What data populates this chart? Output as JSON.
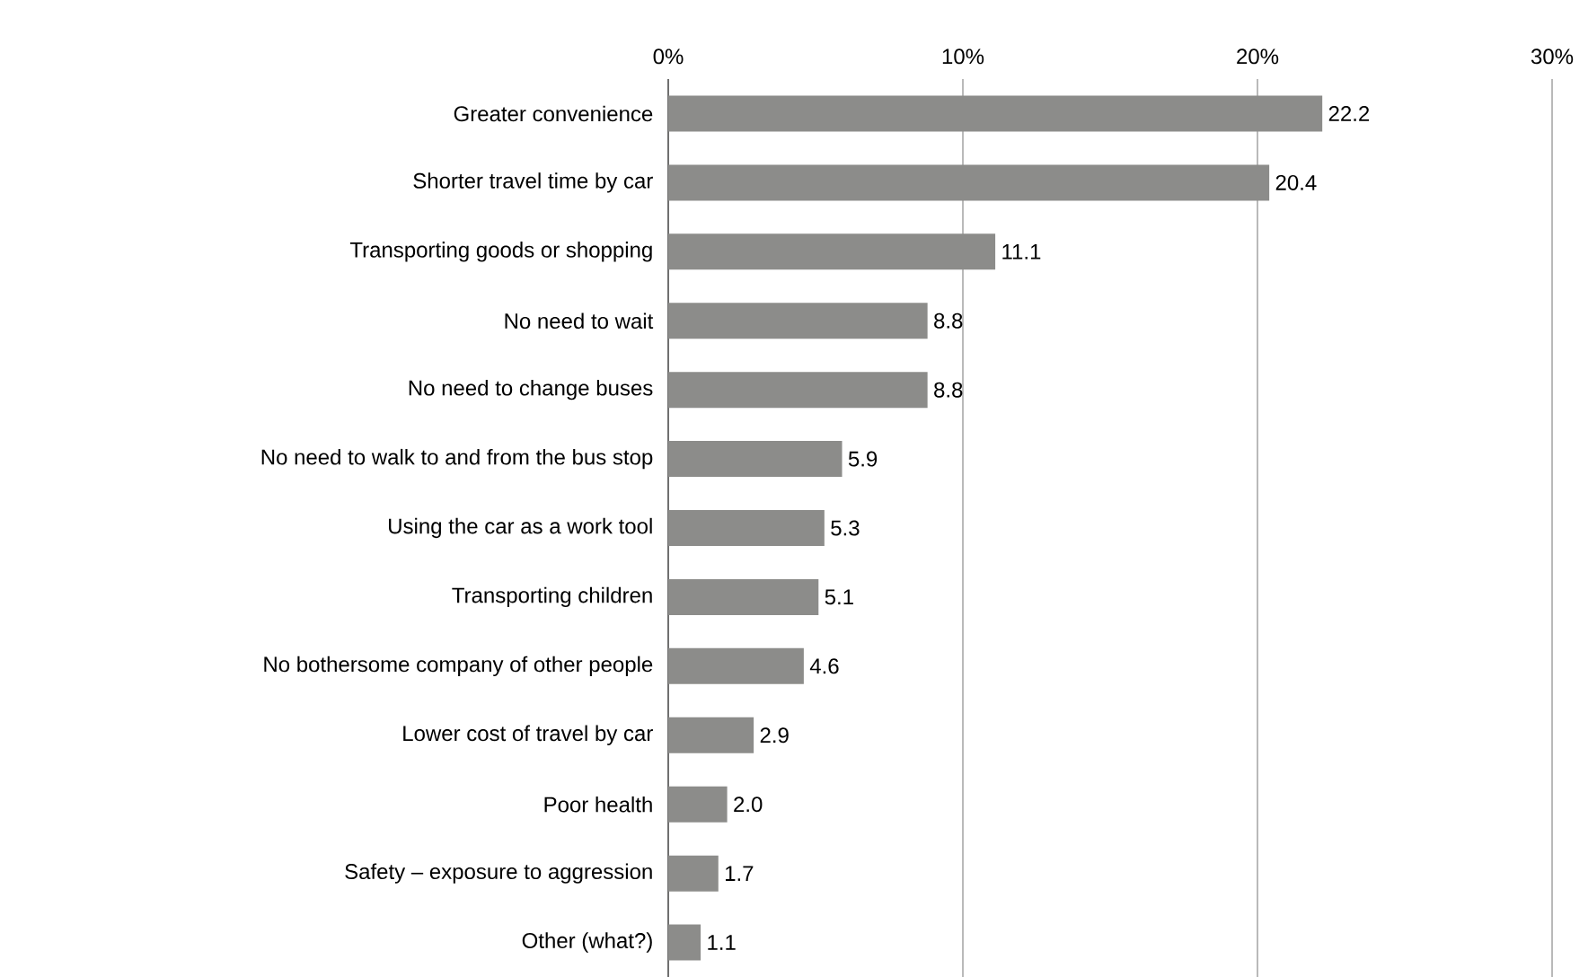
{
  "chart_data": {
    "type": "bar",
    "orientation": "horizontal",
    "categories": [
      "Greater convenience",
      "Shorter travel time by car",
      "Transporting goods or shopping",
      "No need to wait",
      "No need to change buses",
      "No need to walk to and from the bus stop",
      "Using the car as a work tool",
      "Transporting children",
      "No bothersome company of other people",
      "Lower cost of travel by car",
      "Poor health",
      "Safety – exposure to aggression",
      "Other (what?)"
    ],
    "values": [
      22.2,
      20.4,
      11.1,
      8.8,
      8.8,
      5.9,
      5.3,
      5.1,
      4.6,
      2.9,
      2.0,
      1.7,
      1.1
    ],
    "value_labels": [
      "22.2",
      "20.4",
      "11.1",
      "8.8",
      "8.8",
      "5.9",
      "5.3",
      "5.1",
      "4.6",
      "2.9",
      "2.0",
      "1.7",
      "1.1"
    ],
    "color": "#8c8c8a",
    "xlim": [
      0,
      30
    ],
    "xticks": [
      {
        "value": 0,
        "label": "0%"
      },
      {
        "value": 10,
        "label": "10%"
      },
      {
        "value": 20,
        "label": "20%"
      },
      {
        "value": 30,
        "label": "30%"
      }
    ],
    "grid": "x"
  }
}
